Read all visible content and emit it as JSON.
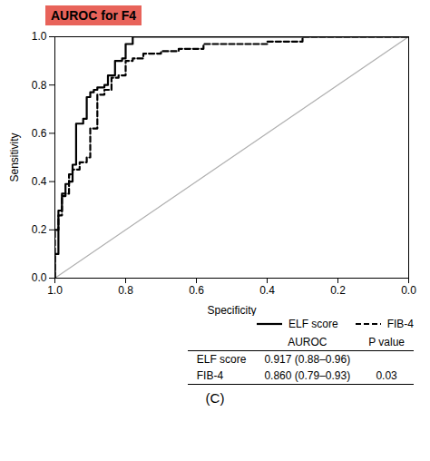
{
  "chart_data": {
    "type": "line",
    "title": "AUROC for F4",
    "title_background": "#E8635A",
    "xlabel": "Specificity",
    "ylabel": "Sensitivity",
    "caption": "(C)",
    "xlim": [
      1.0,
      0.0
    ],
    "ylim": [
      0.0,
      1.0
    ],
    "xticks": [
      {
        "value": 1.0,
        "label": "1.0"
      },
      0.8,
      0.6,
      0.4,
      0.2,
      {
        "value": 0.0,
        "label": "0.0"
      }
    ],
    "yticks": [
      {
        "value": 0.0,
        "label": "0.0"
      },
      0.2,
      0.4,
      0.6,
      0.8,
      {
        "value": 1.0,
        "label": "1.0"
      }
    ],
    "grid": false,
    "legend": "right",
    "diagonal": {
      "x": [
        1.0,
        0.0
      ],
      "values": [
        0.0,
        1.0
      ],
      "color": "#b0b0b0"
    },
    "series": [
      {
        "name": "ELF score",
        "color": "#000000",
        "line_style": "solid",
        "x": [
          1.0,
          1.0,
          0.99,
          0.99,
          0.98,
          0.98,
          0.97,
          0.97,
          0.96,
          0.96,
          0.95,
          0.95,
          0.94,
          0.94,
          0.92,
          0.92,
          0.91,
          0.91,
          0.9,
          0.9,
          0.89,
          0.89,
          0.88,
          0.88,
          0.86,
          0.86,
          0.85,
          0.85,
          0.83,
          0.83,
          0.81,
          0.81,
          0.8,
          0.8,
          0.78,
          0.78,
          0.75,
          0.75,
          0.7,
          0.7,
          0.6,
          0.6,
          0.5,
          0.5,
          0.4,
          0.4,
          0.3,
          0.3,
          0.2,
          0.2,
          0.0
        ],
        "values": [
          0.0,
          0.1,
          0.1,
          0.28,
          0.28,
          0.34,
          0.34,
          0.39,
          0.39,
          0.4,
          0.4,
          0.47,
          0.47,
          0.64,
          0.64,
          0.66,
          0.66,
          0.75,
          0.75,
          0.77,
          0.77,
          0.78,
          0.78,
          0.79,
          0.79,
          0.8,
          0.8,
          0.84,
          0.84,
          0.9,
          0.9,
          0.91,
          0.91,
          0.97,
          0.97,
          1.0,
          1.0,
          1.0,
          1.0,
          1.0,
          1.0,
          1.0,
          1.0,
          1.0,
          1.0,
          1.0,
          1.0,
          1.0,
          1.0,
          1.0,
          1.0
        ]
      },
      {
        "name": "FIB-4",
        "color": "#000000",
        "line_style": "dashed",
        "x": [
          1.0,
          1.0,
          0.99,
          0.99,
          0.98,
          0.98,
          0.96,
          0.96,
          0.95,
          0.95,
          0.93,
          0.93,
          0.91,
          0.91,
          0.9,
          0.9,
          0.88,
          0.88,
          0.86,
          0.86,
          0.84,
          0.84,
          0.82,
          0.82,
          0.8,
          0.8,
          0.78,
          0.78,
          0.75,
          0.75,
          0.7,
          0.7,
          0.65,
          0.65,
          0.58,
          0.58,
          0.45,
          0.45,
          0.4,
          0.4,
          0.3,
          0.3,
          0.0
        ],
        "values": [
          0.0,
          0.2,
          0.2,
          0.26,
          0.26,
          0.35,
          0.35,
          0.43,
          0.43,
          0.45,
          0.45,
          0.48,
          0.48,
          0.5,
          0.5,
          0.62,
          0.62,
          0.76,
          0.76,
          0.78,
          0.78,
          0.83,
          0.83,
          0.84,
          0.84,
          0.9,
          0.9,
          0.91,
          0.91,
          0.93,
          0.93,
          0.94,
          0.94,
          0.95,
          0.95,
          0.97,
          0.97,
          0.97,
          0.97,
          0.98,
          0.98,
          1.0,
          1.0
        ]
      }
    ],
    "table": {
      "columns": [
        "AUROC",
        "P value"
      ],
      "rows": [
        {
          "label": "ELF score",
          "auroc": "0.917 (0.88–0.96)"
        },
        {
          "label": "FIB-4",
          "auroc": "0.860 (0.79–0.93)",
          "p_value": "0.03"
        }
      ]
    }
  }
}
